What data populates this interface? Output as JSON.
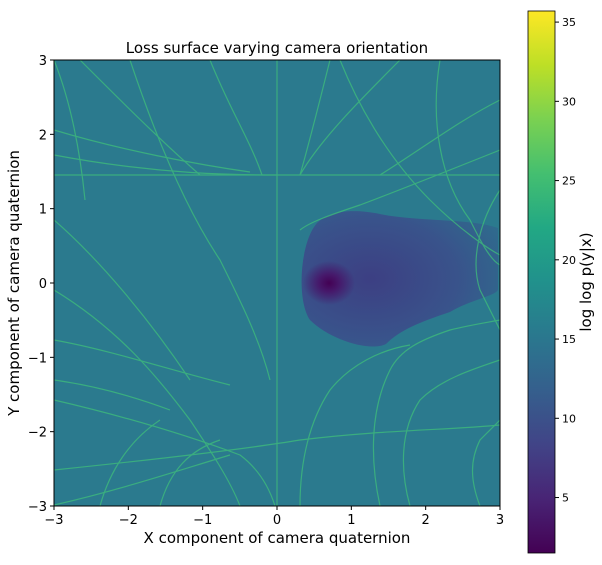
{
  "chart_data": {
    "type": "heatmap",
    "title": "Loss surface varying camera orientation",
    "xlabel": "X component of camera quaternion",
    "ylabel": "Y component of camera quaternion",
    "xlim": [
      -3,
      3
    ],
    "ylim": [
      -3,
      3
    ],
    "xticks": [
      "−3",
      "−2",
      "−1",
      "0",
      "1",
      "2",
      "3"
    ],
    "yticks": [
      "3",
      "2",
      "1",
      "0",
      "−1",
      "−2",
      "−3"
    ],
    "grid": false,
    "colormap": "viridis",
    "colorbar": {
      "label": "log log p(y|x)",
      "range": [
        1.5,
        35.7
      ],
      "ticks": [
        "35",
        "30",
        "25",
        "20",
        "15",
        "10",
        "5"
      ]
    },
    "background_value": 14,
    "minimum": {
      "x": 0.7,
      "y": 0.0,
      "value": 1.5
    },
    "basin": {
      "x_range": [
        0.3,
        2.9
      ],
      "y_range": [
        -0.6,
        1.1
      ],
      "typical_value": 9
    }
  }
}
